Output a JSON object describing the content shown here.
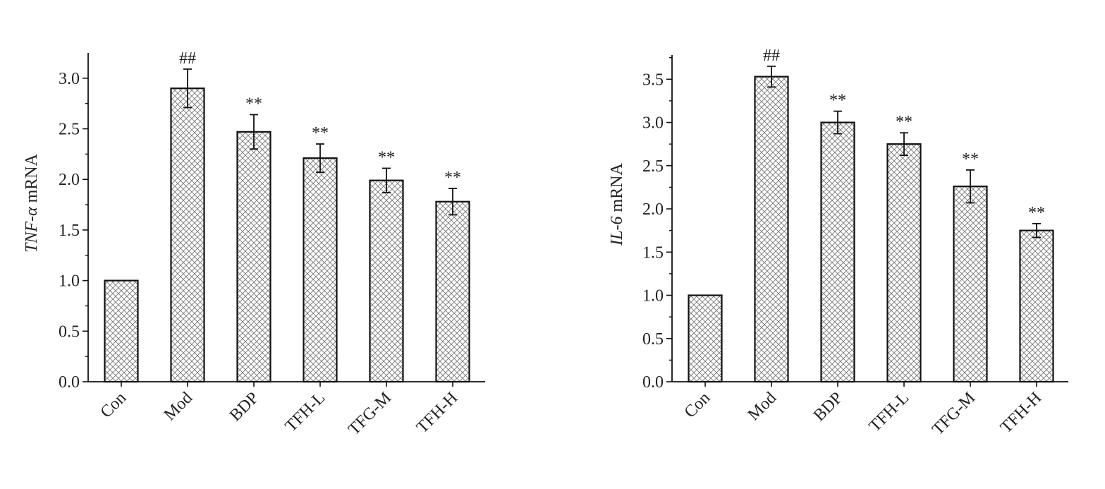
{
  "chart_data": [
    {
      "type": "bar",
      "categories": [
        "Con",
        "Mod",
        "BDP",
        "TFH-L",
        "TFG-M",
        "TFH-H"
      ],
      "values": [
        1.0,
        2.9,
        2.47,
        2.21,
        1.99,
        1.78
      ],
      "errors": [
        0,
        0.19,
        0.17,
        0.14,
        0.12,
        0.13
      ],
      "significance": [
        "",
        "##",
        "**",
        "**",
        "**",
        "**"
      ],
      "ylabel_italic": "TNF-α",
      "ylabel_rest": " mRNA",
      "ylim": [
        0,
        3.25
      ],
      "yticks": [
        "0.0",
        "0.5",
        "1.0",
        "1.5",
        "2.0",
        "2.5",
        "3.0"
      ],
      "grid": false
    },
    {
      "type": "bar",
      "categories": [
        "Con",
        "Mod",
        "BDP",
        "TFH-L",
        "TFG-M",
        "TFH-H"
      ],
      "values": [
        1.0,
        3.53,
        3.0,
        2.75,
        2.26,
        1.75
      ],
      "errors": [
        0,
        0.12,
        0.13,
        0.13,
        0.19,
        0.08
      ],
      "significance": [
        "",
        "##",
        "**",
        "**",
        "**",
        "**"
      ],
      "ylabel_italic": "IL-6",
      "ylabel_rest": " mRNA",
      "ylim": [
        0,
        3.78
      ],
      "yticks": [
        "0.0",
        "0.5",
        "1.0",
        "1.5",
        "2.0",
        "2.5",
        "3.0",
        "3.5"
      ],
      "grid": false
    }
  ]
}
